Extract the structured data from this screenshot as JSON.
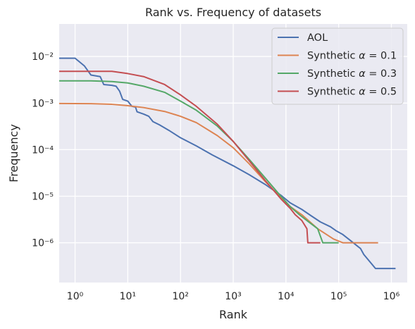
{
  "chart_data": {
    "type": "line",
    "title": "Rank vs. Frequency of datasets",
    "xlabel": "Rank",
    "ylabel": "Frequency",
    "xscale": "log",
    "yscale": "log",
    "xlim": [
      0.5,
      2000000
    ],
    "ylim": [
      1.4e-07,
      0.05
    ],
    "grid": true,
    "legend_position": "top-right",
    "background": "#eaeaf2",
    "x_ticks": [
      {
        "value": 1,
        "label": "10⁰"
      },
      {
        "value": 10,
        "label": "10¹"
      },
      {
        "value": 100,
        "label": "10²"
      },
      {
        "value": 1000,
        "label": "10³"
      },
      {
        "value": 10000,
        "label": "10⁴"
      },
      {
        "value": 100000,
        "label": "10⁵"
      },
      {
        "value": 1000000,
        "label": "10⁶"
      }
    ],
    "y_ticks": [
      {
        "value": 1e-06,
        "label": "10⁻⁶"
      },
      {
        "value": 1e-05,
        "label": "10⁻⁵"
      },
      {
        "value": 0.0001,
        "label": "10⁻⁴"
      },
      {
        "value": 0.001,
        "label": "10⁻³"
      },
      {
        "value": 0.01,
        "label": "10⁻²"
      }
    ],
    "series": [
      {
        "name": "AOL",
        "color": "#4c72b0",
        "points": [
          [
            0.5,
            0.0092
          ],
          [
            1,
            0.0092
          ],
          [
            1.5,
            0.0063
          ],
          [
            2,
            0.004
          ],
          [
            3,
            0.0037
          ],
          [
            3.5,
            0.0025
          ],
          [
            5,
            0.0024
          ],
          [
            6,
            0.0023
          ],
          [
            7,
            0.0018
          ],
          [
            8,
            0.0012
          ],
          [
            10,
            0.0011
          ],
          [
            12,
            0.00085
          ],
          [
            14,
            0.00082
          ],
          [
            15,
            0.00065
          ],
          [
            20,
            0.00058
          ],
          [
            25,
            0.00052
          ],
          [
            30,
            0.0004
          ],
          [
            40,
            0.00034
          ],
          [
            60,
            0.00026
          ],
          [
            100,
            0.00018
          ],
          [
            200,
            0.00012
          ],
          [
            400,
            7.7e-05
          ],
          [
            1000,
            4.5e-05
          ],
          [
            2000,
            2.9e-05
          ],
          [
            4000,
            1.8e-05
          ],
          [
            8000,
            1.05e-05
          ],
          [
            12000,
            7.2e-06
          ],
          [
            20000,
            5.2e-06
          ],
          [
            30000,
            3.8e-06
          ],
          [
            45000,
            2.8e-06
          ],
          [
            70000,
            2.2e-06
          ],
          [
            90000,
            1.8e-06
          ],
          [
            120000,
            1.5e-06
          ],
          [
            170000,
            1.1e-06
          ],
          [
            260000,
            7.5e-07
          ],
          [
            300000,
            5.6e-07
          ],
          [
            500000,
            2.8e-07
          ],
          [
            1200000,
            2.8e-07
          ]
        ]
      },
      {
        "name": "Synthetic α = 0.1",
        "label_prefix": "Synthetic ",
        "label_suffix": " = 0.1",
        "color": "#dd8452",
        "points": [
          [
            0.5,
            0.00098
          ],
          [
            2,
            0.00097
          ],
          [
            5,
            0.00094
          ],
          [
            10,
            0.00088
          ],
          [
            20,
            0.0008
          ],
          [
            50,
            0.00066
          ],
          [
            100,
            0.00052
          ],
          [
            200,
            0.00038
          ],
          [
            500,
            0.0002
          ],
          [
            1000,
            0.00011
          ],
          [
            2000,
            5e-05
          ],
          [
            4000,
            2.1e-05
          ],
          [
            8000,
            9.2e-06
          ],
          [
            12000,
            6e-06
          ],
          [
            20000,
            4e-06
          ],
          [
            40000,
            2e-06
          ],
          [
            80000,
            1.2e-06
          ],
          [
            120000,
            1e-06
          ],
          [
            560000,
            1e-06
          ]
        ]
      },
      {
        "name": "Synthetic α = 0.3",
        "label_prefix": "Synthetic ",
        "label_suffix": " = 0.3",
        "color": "#55a868",
        "points": [
          [
            0.5,
            0.003
          ],
          [
            2,
            0.003
          ],
          [
            5,
            0.0029
          ],
          [
            10,
            0.0027
          ],
          [
            20,
            0.0023
          ],
          [
            50,
            0.0017
          ],
          [
            100,
            0.0011
          ],
          [
            200,
            0.0007
          ],
          [
            500,
            0.00032
          ],
          [
            1000,
            0.00015
          ],
          [
            2000,
            6.2e-05
          ],
          [
            4000,
            2.5e-05
          ],
          [
            8000,
            1e-05
          ],
          [
            12000,
            6e-06
          ],
          [
            18000,
            4e-06
          ],
          [
            25000,
            3e-06
          ],
          [
            40000,
            2e-06
          ],
          [
            50000,
            1e-06
          ],
          [
            100000,
            1e-06
          ]
        ]
      },
      {
        "name": "Synthetic α = 0.5",
        "label_prefix": "Synthetic ",
        "label_suffix": " = 0.5",
        "color": "#c44e52",
        "points": [
          [
            0.5,
            0.0048
          ],
          [
            2,
            0.0048
          ],
          [
            5,
            0.0048
          ],
          [
            10,
            0.0043
          ],
          [
            20,
            0.0037
          ],
          [
            50,
            0.0025
          ],
          [
            100,
            0.0015
          ],
          [
            200,
            0.00085
          ],
          [
            500,
            0.00035
          ],
          [
            1000,
            0.00015
          ],
          [
            2000,
            5.8e-05
          ],
          [
            4000,
            2.2e-05
          ],
          [
            8000,
            8.8e-06
          ],
          [
            12000,
            5.5e-06
          ],
          [
            15000,
            4e-06
          ],
          [
            20000,
            3e-06
          ],
          [
            25000,
            2e-06
          ],
          [
            26000,
            1e-06
          ],
          [
            45000,
            1e-06
          ]
        ]
      }
    ]
  }
}
